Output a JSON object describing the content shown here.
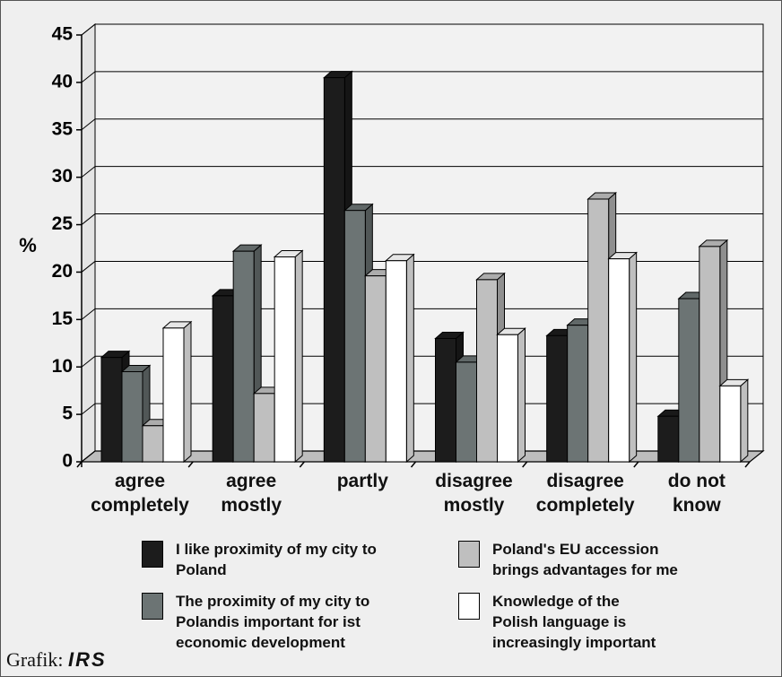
{
  "chart_data": {
    "type": "bar3d",
    "ylabel": "%",
    "categories": [
      "agree\ncompletely",
      "agree\nmostly",
      "partly",
      "disagree\nmostly",
      "disagree\ncompletely",
      "do not\nknow"
    ],
    "series": [
      {
        "name": "I like proximity of my city to\nPoland",
        "color": "#1c1c1c",
        "values": [
          11,
          17.5,
          40.5,
          13,
          13.3,
          4.8
        ]
      },
      {
        "name": "The proximity of my city to\nPolandis important for ist\neconomic development",
        "color": "#6c7474",
        "values": [
          9.5,
          22.2,
          26.5,
          10.5,
          14.4,
          17.2
        ]
      },
      {
        "name": "Poland's EU accession\nbrings advantages for me",
        "color": "#bfbfbf",
        "values": [
          3.8,
          7.2,
          19.6,
          19.2,
          27.7,
          22.7
        ]
      },
      {
        "name": "Knowledge of the\nPolish language is\nincreasingly important",
        "color": "#ffffff",
        "values": [
          14.1,
          21.6,
          21.2,
          13.4,
          21.4,
          8.0
        ]
      }
    ],
    "ylim": [
      0,
      45
    ],
    "yticks": [
      0,
      5,
      10,
      15,
      20,
      25,
      30,
      35,
      40,
      45
    ],
    "grid": true,
    "credit": "Grafik:",
    "credit_brand": "IRS"
  }
}
